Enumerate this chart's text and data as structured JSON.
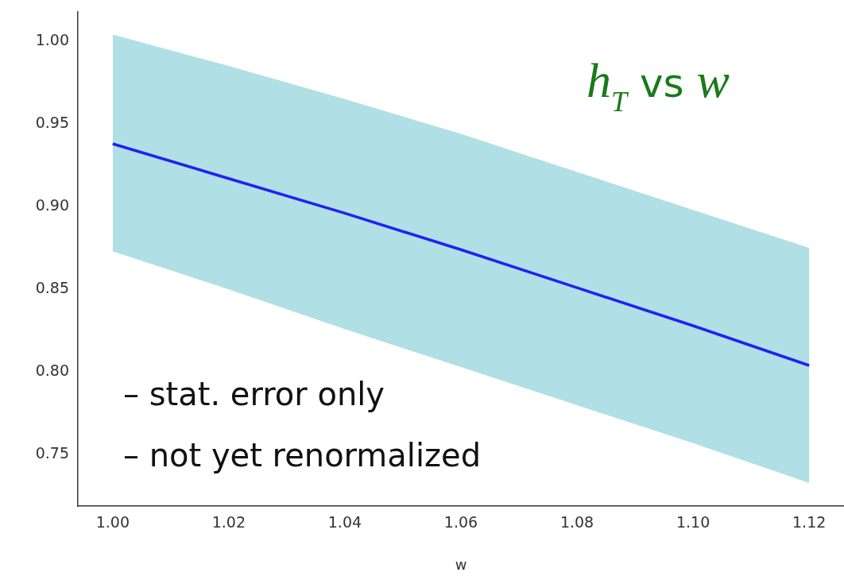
{
  "chart_data": {
    "type": "line",
    "title": "h$_{T}$ vs w",
    "xlabel": "w",
    "annotations": [
      "– stat. error only",
      "– not yet renormalized"
    ],
    "x": [
      1.0,
      1.02,
      1.04,
      1.06,
      1.08,
      1.1,
      1.12
    ],
    "series": [
      {
        "color": "#2222ee",
        "values": [
          0.938,
          0.917,
          0.896,
          0.874,
          0.851,
          0.828,
          0.804
        ],
        "lower": [
          0.873,
          0.85,
          0.826,
          0.803,
          0.78,
          0.757,
          0.733
        ],
        "upper": [
          1.004,
          0.985,
          0.965,
          0.944,
          0.921,
          0.898,
          0.875
        ]
      }
    ],
    "xlim": [
      0.994,
      1.126
    ],
    "xticks": [
      {
        "value": 1,
        "label": "1.00"
      },
      1.02,
      1.04,
      1.06,
      1.08,
      {
        "value": 1.1,
        "label": "1.10"
      },
      1.12
    ],
    "ylim": [
      0.719,
      1.018
    ],
    "yticks": [
      0.75,
      {
        "value": 0.8,
        "label": "0.80"
      },
      0.85,
      {
        "value": 0.9,
        "label": "0.90"
      },
      0.95,
      {
        "value": 1,
        "label": "1.00"
      }
    ],
    "grid": false,
    "legend": false,
    "marker": "none",
    "line_style": "solid"
  }
}
